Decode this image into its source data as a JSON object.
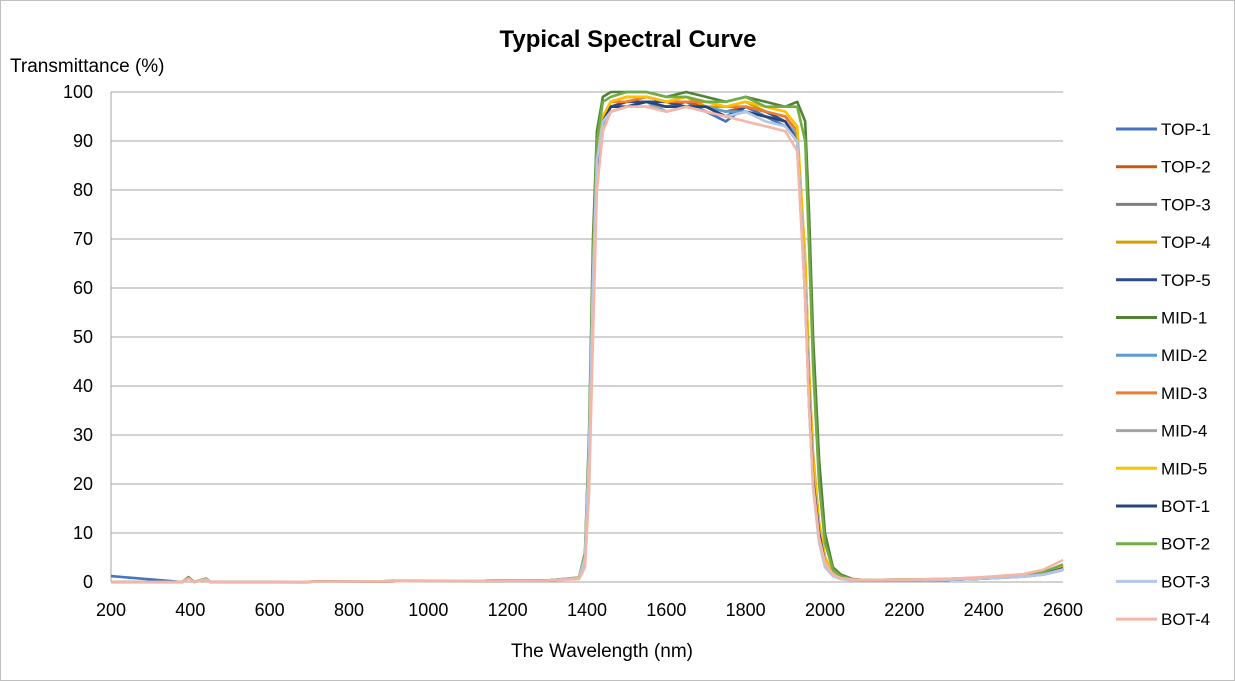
{
  "chart_data": {
    "type": "line",
    "title": "Typical Spectral Curve",
    "xlabel": "The Wavelength (nm)",
    "ylabel": "Transmittance (%)",
    "xlim": [
      200,
      2600
    ],
    "ylim": [
      0,
      100
    ],
    "x_ticks": [
      200,
      400,
      600,
      800,
      1000,
      1200,
      1400,
      1600,
      1800,
      2000,
      2200,
      2400,
      2600
    ],
    "y_ticks": [
      0,
      10,
      20,
      30,
      40,
      50,
      60,
      70,
      80,
      90,
      100
    ],
    "grid": "horizontal",
    "legend_position": "right",
    "x": [
      200,
      380,
      395,
      410,
      440,
      450,
      600,
      1000,
      1300,
      1380,
      1395,
      1405,
      1415,
      1425,
      1440,
      1460,
      1500,
      1550,
      1600,
      1650,
      1700,
      1750,
      1800,
      1850,
      1900,
      1930,
      1950,
      1960,
      1970,
      1985,
      2000,
      2020,
      2040,
      2070,
      2100,
      2200,
      2300,
      2400,
      2500,
      2550,
      2600
    ],
    "series": [
      {
        "name": "TOP-1",
        "color": "#4472c4",
        "values": [
          1.2,
          0,
          0.8,
          0,
          0.6,
          0,
          0,
          0.2,
          0.3,
          0.8,
          5,
          25,
          60,
          85,
          93,
          96,
          97,
          98,
          97,
          98,
          96,
          94,
          97,
          95,
          93,
          90,
          60,
          38,
          22,
          10,
          4,
          1.5,
          0.8,
          0.4,
          0.3,
          0.3,
          0.4,
          0.8,
          1.2,
          1.8,
          3.0
        ]
      },
      {
        "name": "TOP-2",
        "color": "#c55a11",
        "values": [
          0,
          0,
          0.8,
          0,
          0.6,
          0,
          0,
          0.2,
          0.3,
          0.8,
          5,
          26,
          62,
          86,
          94,
          97,
          98,
          99,
          98,
          98,
          97,
          96,
          97,
          96,
          95,
          92,
          65,
          42,
          25,
          12,
          5,
          2,
          1,
          0.5,
          0.3,
          0.3,
          0.4,
          0.7,
          1.2,
          1.6,
          2.8
        ]
      },
      {
        "name": "TOP-3",
        "color": "#7f7f7f",
        "values": [
          0,
          0,
          0.8,
          0,
          0.6,
          0,
          0,
          0.2,
          0.3,
          0.8,
          5,
          24,
          58,
          84,
          93,
          96,
          97,
          98,
          97,
          97,
          96,
          95,
          96,
          95,
          94,
          90,
          58,
          36,
          20,
          9,
          4,
          1.5,
          0.8,
          0.4,
          0.3,
          0.3,
          0.4,
          0.7,
          1.1,
          1.5,
          2.5
        ]
      },
      {
        "name": "TOP-4",
        "color": "#d4a000",
        "values": [
          0,
          0,
          0.8,
          0,
          0.6,
          0,
          0,
          0.2,
          0.3,
          0.8,
          5,
          25,
          60,
          86,
          95,
          98,
          99,
          99,
          98,
          99,
          97,
          97,
          98,
          96,
          95,
          92,
          64,
          40,
          24,
          11,
          5,
          2,
          1,
          0.5,
          0.3,
          0.4,
          0.5,
          0.8,
          1.3,
          1.8,
          3.2
        ]
      },
      {
        "name": "TOP-5",
        "color": "#2f4b8c",
        "values": [
          0,
          0,
          0.8,
          0,
          0.6,
          0,
          0,
          0.2,
          0.3,
          0.8,
          5,
          25,
          60,
          85,
          94,
          97,
          98,
          98,
          98,
          97,
          97,
          95,
          97,
          96,
          94,
          91,
          62,
          39,
          22,
          10,
          4,
          1.5,
          0.8,
          0.4,
          0.3,
          0.3,
          0.4,
          0.7,
          1.2,
          1.6,
          2.8
        ]
      },
      {
        "name": "MID-1",
        "color": "#548235",
        "values": [
          0,
          0,
          1.0,
          0,
          0.7,
          0,
          0,
          0.2,
          0.3,
          0.9,
          6,
          30,
          70,
          92,
          99,
          100,
          100,
          100,
          99,
          100,
          99,
          98,
          99,
          98,
          97,
          98,
          94,
          75,
          50,
          25,
          10,
          3,
          1.5,
          0.6,
          0.4,
          0.5,
          0.6,
          0.9,
          1.4,
          2.0,
          3.5
        ]
      },
      {
        "name": "MID-2",
        "color": "#5b9bd5",
        "values": [
          0,
          0,
          0.8,
          0,
          0.6,
          0,
          0,
          0.2,
          0.3,
          0.8,
          5,
          25,
          60,
          85,
          94,
          97,
          97,
          98,
          96,
          97,
          97,
          96,
          96,
          95,
          94,
          91,
          62,
          40,
          23,
          10,
          4,
          1.5,
          0.8,
          0.4,
          0.3,
          0.3,
          0.4,
          0.7,
          1.1,
          1.5,
          2.6
        ]
      },
      {
        "name": "MID-3",
        "color": "#ed7d31",
        "values": [
          0,
          0,
          0.8,
          0,
          0.6,
          0,
          0,
          0.2,
          0.3,
          0.8,
          5,
          26,
          61,
          86,
          95,
          98,
          98,
          99,
          98,
          98,
          98,
          97,
          97,
          96,
          95,
          92,
          66,
          43,
          26,
          12,
          5,
          2,
          1,
          0.5,
          0.3,
          0.4,
          0.5,
          0.8,
          1.3,
          1.9,
          3.4
        ]
      },
      {
        "name": "MID-4",
        "color": "#a5a5a5",
        "values": [
          0,
          0,
          0.8,
          0,
          0.6,
          0,
          0,
          0.2,
          0.3,
          0.8,
          5,
          24,
          58,
          84,
          93,
          96,
          97,
          97,
          97,
          97,
          96,
          95,
          96,
          95,
          94,
          90,
          58,
          36,
          20,
          9,
          4,
          1.5,
          0.8,
          0.4,
          0.3,
          0.3,
          0.4,
          0.7,
          1.1,
          1.5,
          2.5
        ]
      },
      {
        "name": "MID-5",
        "color": "#ffc000",
        "values": [
          0,
          0,
          0.8,
          0,
          0.6,
          0,
          0,
          0.2,
          0.3,
          0.8,
          5,
          25,
          60,
          86,
          95,
          98,
          99,
          99,
          98,
          99,
          98,
          97,
          98,
          97,
          96,
          93,
          66,
          42,
          25,
          12,
          5,
          2,
          1,
          0.5,
          0.3,
          0.4,
          0.5,
          0.8,
          1.3,
          1.8,
          3.0
        ]
      },
      {
        "name": "BOT-1",
        "color": "#264478",
        "values": [
          0,
          0,
          0.8,
          0,
          0.6,
          0,
          0,
          0.2,
          0.3,
          0.8,
          5,
          25,
          60,
          85,
          94,
          97,
          97,
          98,
          97,
          97,
          97,
          95,
          96,
          95,
          94,
          90,
          60,
          38,
          21,
          10,
          4,
          1.5,
          0.8,
          0.4,
          0.3,
          0.3,
          0.4,
          0.7,
          1.2,
          1.6,
          2.8
        ]
      },
      {
        "name": "BOT-2",
        "color": "#70ad47",
        "values": [
          0,
          0,
          0.9,
          0,
          0.7,
          0,
          0,
          0.2,
          0.3,
          0.9,
          6,
          28,
          66,
          90,
          98,
          99,
          100,
          100,
          99,
          99,
          98,
          98,
          99,
          97,
          97,
          97,
          90,
          68,
          44,
          20,
          8,
          2.5,
          1.2,
          0.5,
          0.4,
          0.5,
          0.6,
          0.9,
          1.4,
          2.0,
          3.6
        ]
      },
      {
        "name": "BOT-3",
        "color": "#b4c7e7",
        "values": [
          0,
          0,
          0.7,
          0,
          0.5,
          0,
          0,
          0.2,
          0.3,
          0.8,
          5,
          26,
          62,
          86,
          94,
          96,
          97,
          97,
          96,
          97,
          96,
          95,
          96,
          94,
          93,
          90,
          60,
          36,
          19,
          8,
          3,
          1.2,
          0.6,
          0.3,
          0.3,
          0.3,
          0.4,
          0.7,
          1.1,
          1.5,
          2.6
        ]
      },
      {
        "name": "BOT-4",
        "color": "#f4b6a6",
        "values": [
          0,
          0,
          0.7,
          0,
          0.5,
          0,
          0,
          0.2,
          0.3,
          0.6,
          3,
          18,
          50,
          80,
          92,
          96,
          97,
          97,
          96,
          97,
          96,
          95,
          94,
          93,
          92,
          88,
          58,
          36,
          20,
          9,
          4,
          1.5,
          0.8,
          0.5,
          0.4,
          0.5,
          0.6,
          1.0,
          1.6,
          2.5,
          4.5
        ]
      }
    ]
  }
}
